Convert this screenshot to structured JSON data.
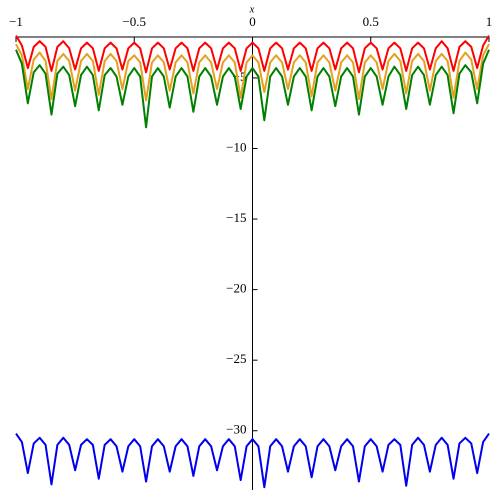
{
  "chart_data": {
    "type": "line",
    "xlabel": "x",
    "x": [
      -1,
      -0.975,
      -0.95,
      -0.925,
      -0.9,
      -0.875,
      -0.85,
      -0.825,
      -0.8,
      -0.775,
      -0.75,
      -0.725,
      -0.7,
      -0.675,
      -0.65,
      -0.625,
      -0.6,
      -0.575,
      -0.55,
      -0.525,
      -0.5,
      -0.475,
      -0.45,
      -0.425,
      -0.4,
      -0.375,
      -0.35,
      -0.325,
      -0.3,
      -0.275,
      -0.25,
      -0.225,
      -0.2,
      -0.175,
      -0.15,
      -0.125,
      -0.1,
      -0.075,
      -0.05,
      -0.025,
      0,
      0.025,
      0.05,
      0.075,
      0.1,
      0.125,
      0.15,
      0.175,
      0.2,
      0.225,
      0.25,
      0.275,
      0.3,
      0.325,
      0.35,
      0.375,
      0.4,
      0.425,
      0.45,
      0.475,
      0.5,
      0.525,
      0.55,
      0.575,
      0.6,
      0.625,
      0.65,
      0.675,
      0.7,
      0.725,
      0.75,
      0.775,
      0.8,
      0.825,
      0.85,
      0.875,
      0.9,
      0.925,
      0.95,
      0.975,
      1
    ],
    "series": [
      {
        "color": "#ff0000",
        "values": [
          -2.0,
          -2.7,
          -4.3,
          -2.8,
          -2.4,
          -2.8,
          -4.5,
          -2.8,
          -2.4,
          -2.9,
          -4.4,
          -2.9,
          -2.5,
          -2.9,
          -4.5,
          -2.9,
          -2.5,
          -2.9,
          -4.4,
          -2.9,
          -2.5,
          -2.9,
          -4.6,
          -2.9,
          -2.5,
          -2.9,
          -4.4,
          -2.9,
          -2.5,
          -2.9,
          -4.5,
          -2.9,
          -2.5,
          -2.9,
          -4.4,
          -2.9,
          -2.5,
          -2.9,
          -4.5,
          -2.9,
          -2.5,
          -2.9,
          -4.5,
          -2.9,
          -2.5,
          -2.9,
          -4.4,
          -2.9,
          -2.5,
          -2.9,
          -4.5,
          -2.9,
          -2.5,
          -2.9,
          -4.4,
          -2.9,
          -2.5,
          -2.9,
          -4.6,
          -2.9,
          -2.5,
          -2.9,
          -4.4,
          -2.9,
          -2.5,
          -2.9,
          -4.5,
          -2.9,
          -2.5,
          -2.9,
          -4.4,
          -2.9,
          -2.4,
          -2.9,
          -4.5,
          -2.8,
          -2.4,
          -2.8,
          -4.3,
          -2.7,
          -2.0
        ]
      },
      {
        "color": "#e6a020",
        "values": [
          -2.6,
          -3.4,
          -5.8,
          -3.7,
          -3.2,
          -3.8,
          -6.5,
          -3.8,
          -3.3,
          -3.8,
          -5.9,
          -3.8,
          -3.3,
          -3.8,
          -6.2,
          -3.8,
          -3.3,
          -3.8,
          -5.8,
          -3.8,
          -3.4,
          -3.9,
          -6.6,
          -3.9,
          -3.4,
          -3.9,
          -5.9,
          -3.9,
          -3.4,
          -3.9,
          -6.1,
          -3.9,
          -3.4,
          -3.9,
          -5.8,
          -3.9,
          -3.4,
          -3.9,
          -6.4,
          -3.9,
          -3.4,
          -3.9,
          -6.0,
          -3.9,
          -3.4,
          -3.9,
          -5.8,
          -3.9,
          -3.4,
          -3.9,
          -6.3,
          -3.9,
          -3.4,
          -3.9,
          -5.9,
          -3.9,
          -3.4,
          -3.9,
          -6.5,
          -3.9,
          -3.4,
          -3.9,
          -5.8,
          -3.8,
          -3.3,
          -3.8,
          -6.1,
          -3.8,
          -3.3,
          -3.8,
          -5.9,
          -3.8,
          -3.3,
          -3.8,
          -6.4,
          -3.8,
          -3.2,
          -3.7,
          -5.8,
          -3.4,
          -2.6
        ]
      },
      {
        "color": "#008000",
        "values": [
          -3.0,
          -4.0,
          -6.8,
          -4.6,
          -4.1,
          -4.7,
          -7.6,
          -4.7,
          -4.2,
          -4.8,
          -7.0,
          -4.8,
          -4.2,
          -4.8,
          -7.3,
          -4.8,
          -4.3,
          -4.9,
          -6.9,
          -4.9,
          -4.3,
          -4.9,
          -8.5,
          -4.9,
          -4.3,
          -4.9,
          -7.1,
          -4.9,
          -4.3,
          -4.9,
          -7.4,
          -4.9,
          -4.3,
          -4.9,
          -6.9,
          -4.9,
          -4.3,
          -4.9,
          -7.2,
          -4.9,
          -4.3,
          -4.9,
          -8.0,
          -4.9,
          -4.3,
          -4.9,
          -6.9,
          -4.9,
          -4.3,
          -4.9,
          -7.3,
          -4.9,
          -4.3,
          -4.9,
          -7.0,
          -4.9,
          -4.3,
          -4.9,
          -7.6,
          -4.9,
          -4.3,
          -4.9,
          -6.9,
          -4.9,
          -4.2,
          -4.8,
          -7.2,
          -4.8,
          -4.2,
          -4.8,
          -6.9,
          -4.8,
          -4.2,
          -4.8,
          -7.5,
          -4.7,
          -4.1,
          -4.6,
          -6.8,
          -4.0,
          -3.0
        ]
      },
      {
        "color": "#0000ee",
        "values": [
          -30.2,
          -30.8,
          -33.0,
          -30.9,
          -30.5,
          -31.0,
          -33.8,
          -31.0,
          -30.5,
          -31.0,
          -32.8,
          -31.0,
          -30.6,
          -31.0,
          -33.4,
          -31.0,
          -30.6,
          -31.1,
          -32.9,
          -31.1,
          -30.6,
          -31.1,
          -33.6,
          -31.1,
          -30.6,
          -31.1,
          -32.9,
          -31.1,
          -30.6,
          -31.1,
          -33.2,
          -31.1,
          -30.6,
          -31.1,
          -32.8,
          -31.1,
          -30.6,
          -31.1,
          -33.5,
          -31.1,
          -30.6,
          -31.1,
          -34.0,
          -31.1,
          -30.6,
          -31.1,
          -32.9,
          -31.1,
          -30.6,
          -31.1,
          -33.3,
          -31.1,
          -30.6,
          -31.1,
          -32.8,
          -31.1,
          -30.6,
          -31.1,
          -33.6,
          -31.1,
          -30.6,
          -31.1,
          -32.9,
          -31.0,
          -30.6,
          -31.0,
          -33.9,
          -31.0,
          -30.5,
          -31.0,
          -32.9,
          -31.0,
          -30.5,
          -31.0,
          -33.4,
          -30.9,
          -30.5,
          -30.9,
          -33.0,
          -30.8,
          -30.2
        ]
      }
    ],
    "xlim": [
      -1,
      1
    ],
    "ylim": [
      -2.1,
      -34.2
    ],
    "xticks": [
      {
        "value": -1,
        "label": "−1"
      },
      {
        "value": -0.5,
        "label": "−0.5"
      },
      {
        "value": 0,
        "label": "0"
      },
      {
        "value": 0.5,
        "label": "0.5"
      },
      {
        "value": 1,
        "label": "1"
      }
    ],
    "yticks": [
      {
        "value": -5,
        "label": "−5"
      },
      {
        "value": -10,
        "label": "−10"
      },
      {
        "value": -15,
        "label": "−15"
      },
      {
        "value": -20,
        "label": "−20"
      },
      {
        "value": -25,
        "label": "−25"
      },
      {
        "value": -30,
        "label": "−30"
      }
    ]
  }
}
